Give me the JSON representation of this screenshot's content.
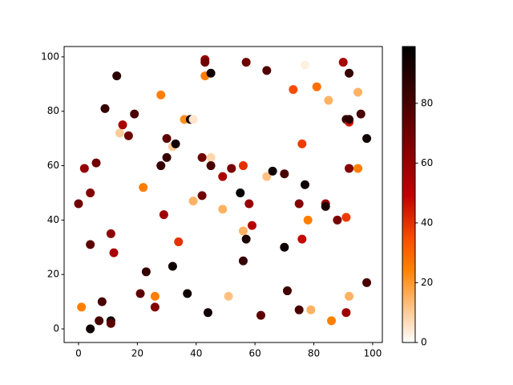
{
  "chart_data": {
    "type": "scatter",
    "x": [
      0,
      2,
      1,
      4,
      4,
      4,
      6,
      7,
      8,
      9,
      11,
      11,
      11,
      12,
      13,
      14,
      15,
      17,
      19,
      21,
      22,
      23,
      26,
      26,
      28,
      28,
      29,
      30,
      30,
      32,
      33,
      32,
      34,
      36,
      38,
      39,
      37,
      39,
      42,
      42,
      43,
      43,
      43,
      45,
      45,
      45,
      44,
      49,
      49,
      51,
      52,
      55,
      56,
      56,
      56,
      57,
      57,
      58,
      59,
      62,
      64,
      64,
      66,
      70,
      70,
      71,
      73,
      75,
      75,
      76,
      76,
      77,
      77,
      78,
      79,
      81,
      85,
      84,
      84,
      86,
      88,
      90,
      91,
      91,
      91,
      92,
      92,
      92,
      92,
      95,
      95,
      96,
      98,
      98,
      92
    ],
    "y": [
      46,
      59,
      8,
      50,
      31,
      0,
      61,
      3,
      10,
      81,
      35,
      3,
      2,
      28,
      93,
      72,
      75,
      71,
      79,
      13,
      52,
      21,
      12,
      8,
      86,
      60,
      42,
      70,
      63,
      67,
      68,
      23,
      32,
      77,
      77,
      77,
      13,
      47,
      63,
      49,
      99,
      98,
      93,
      94,
      63,
      60,
      6,
      56,
      44,
      12,
      59,
      50,
      60,
      36,
      25,
      33,
      98,
      46,
      38,
      5,
      56,
      95,
      58,
      57,
      30,
      14,
      88,
      46,
      7,
      68,
      33,
      97,
      53,
      40,
      7,
      89,
      84,
      46,
      45,
      3,
      40,
      98,
      41,
      6,
      77,
      76,
      94,
      59,
      12,
      87,
      59,
      79,
      70,
      17,
      77
    ],
    "values": [
      70,
      60,
      25,
      65,
      75,
      95,
      70,
      80,
      80,
      85,
      62,
      95,
      75,
      55,
      88,
      10,
      55,
      70,
      80,
      75,
      25,
      85,
      25,
      65,
      25,
      85,
      58,
      75,
      85,
      10,
      95,
      95,
      40,
      22,
      95,
      5,
      95,
      15,
      70,
      70,
      60,
      70,
      25,
      95,
      8,
      80,
      95,
      55,
      15,
      12,
      68,
      98,
      40,
      15,
      85,
      92,
      70,
      60,
      52,
      75,
      12,
      78,
      95,
      80,
      95,
      82,
      35,
      65,
      80,
      38,
      48,
      3,
      95,
      25,
      15,
      28,
      15,
      58,
      92,
      25,
      68,
      55,
      38,
      58,
      85,
      45,
      85,
      65,
      15,
      15,
      25,
      80,
      95,
      80,
      88
    ],
    "colormap": "gist_heat_r",
    "clim": [
      0,
      99
    ],
    "cticks": [
      0,
      20,
      40,
      60,
      80
    ],
    "xlim": [
      -4.9,
      103.3
    ],
    "ylim": [
      -5,
      103.8
    ],
    "xticks": [
      0,
      20,
      40,
      60,
      80,
      100
    ],
    "yticks": [
      0,
      20,
      40,
      60,
      80,
      100
    ]
  }
}
